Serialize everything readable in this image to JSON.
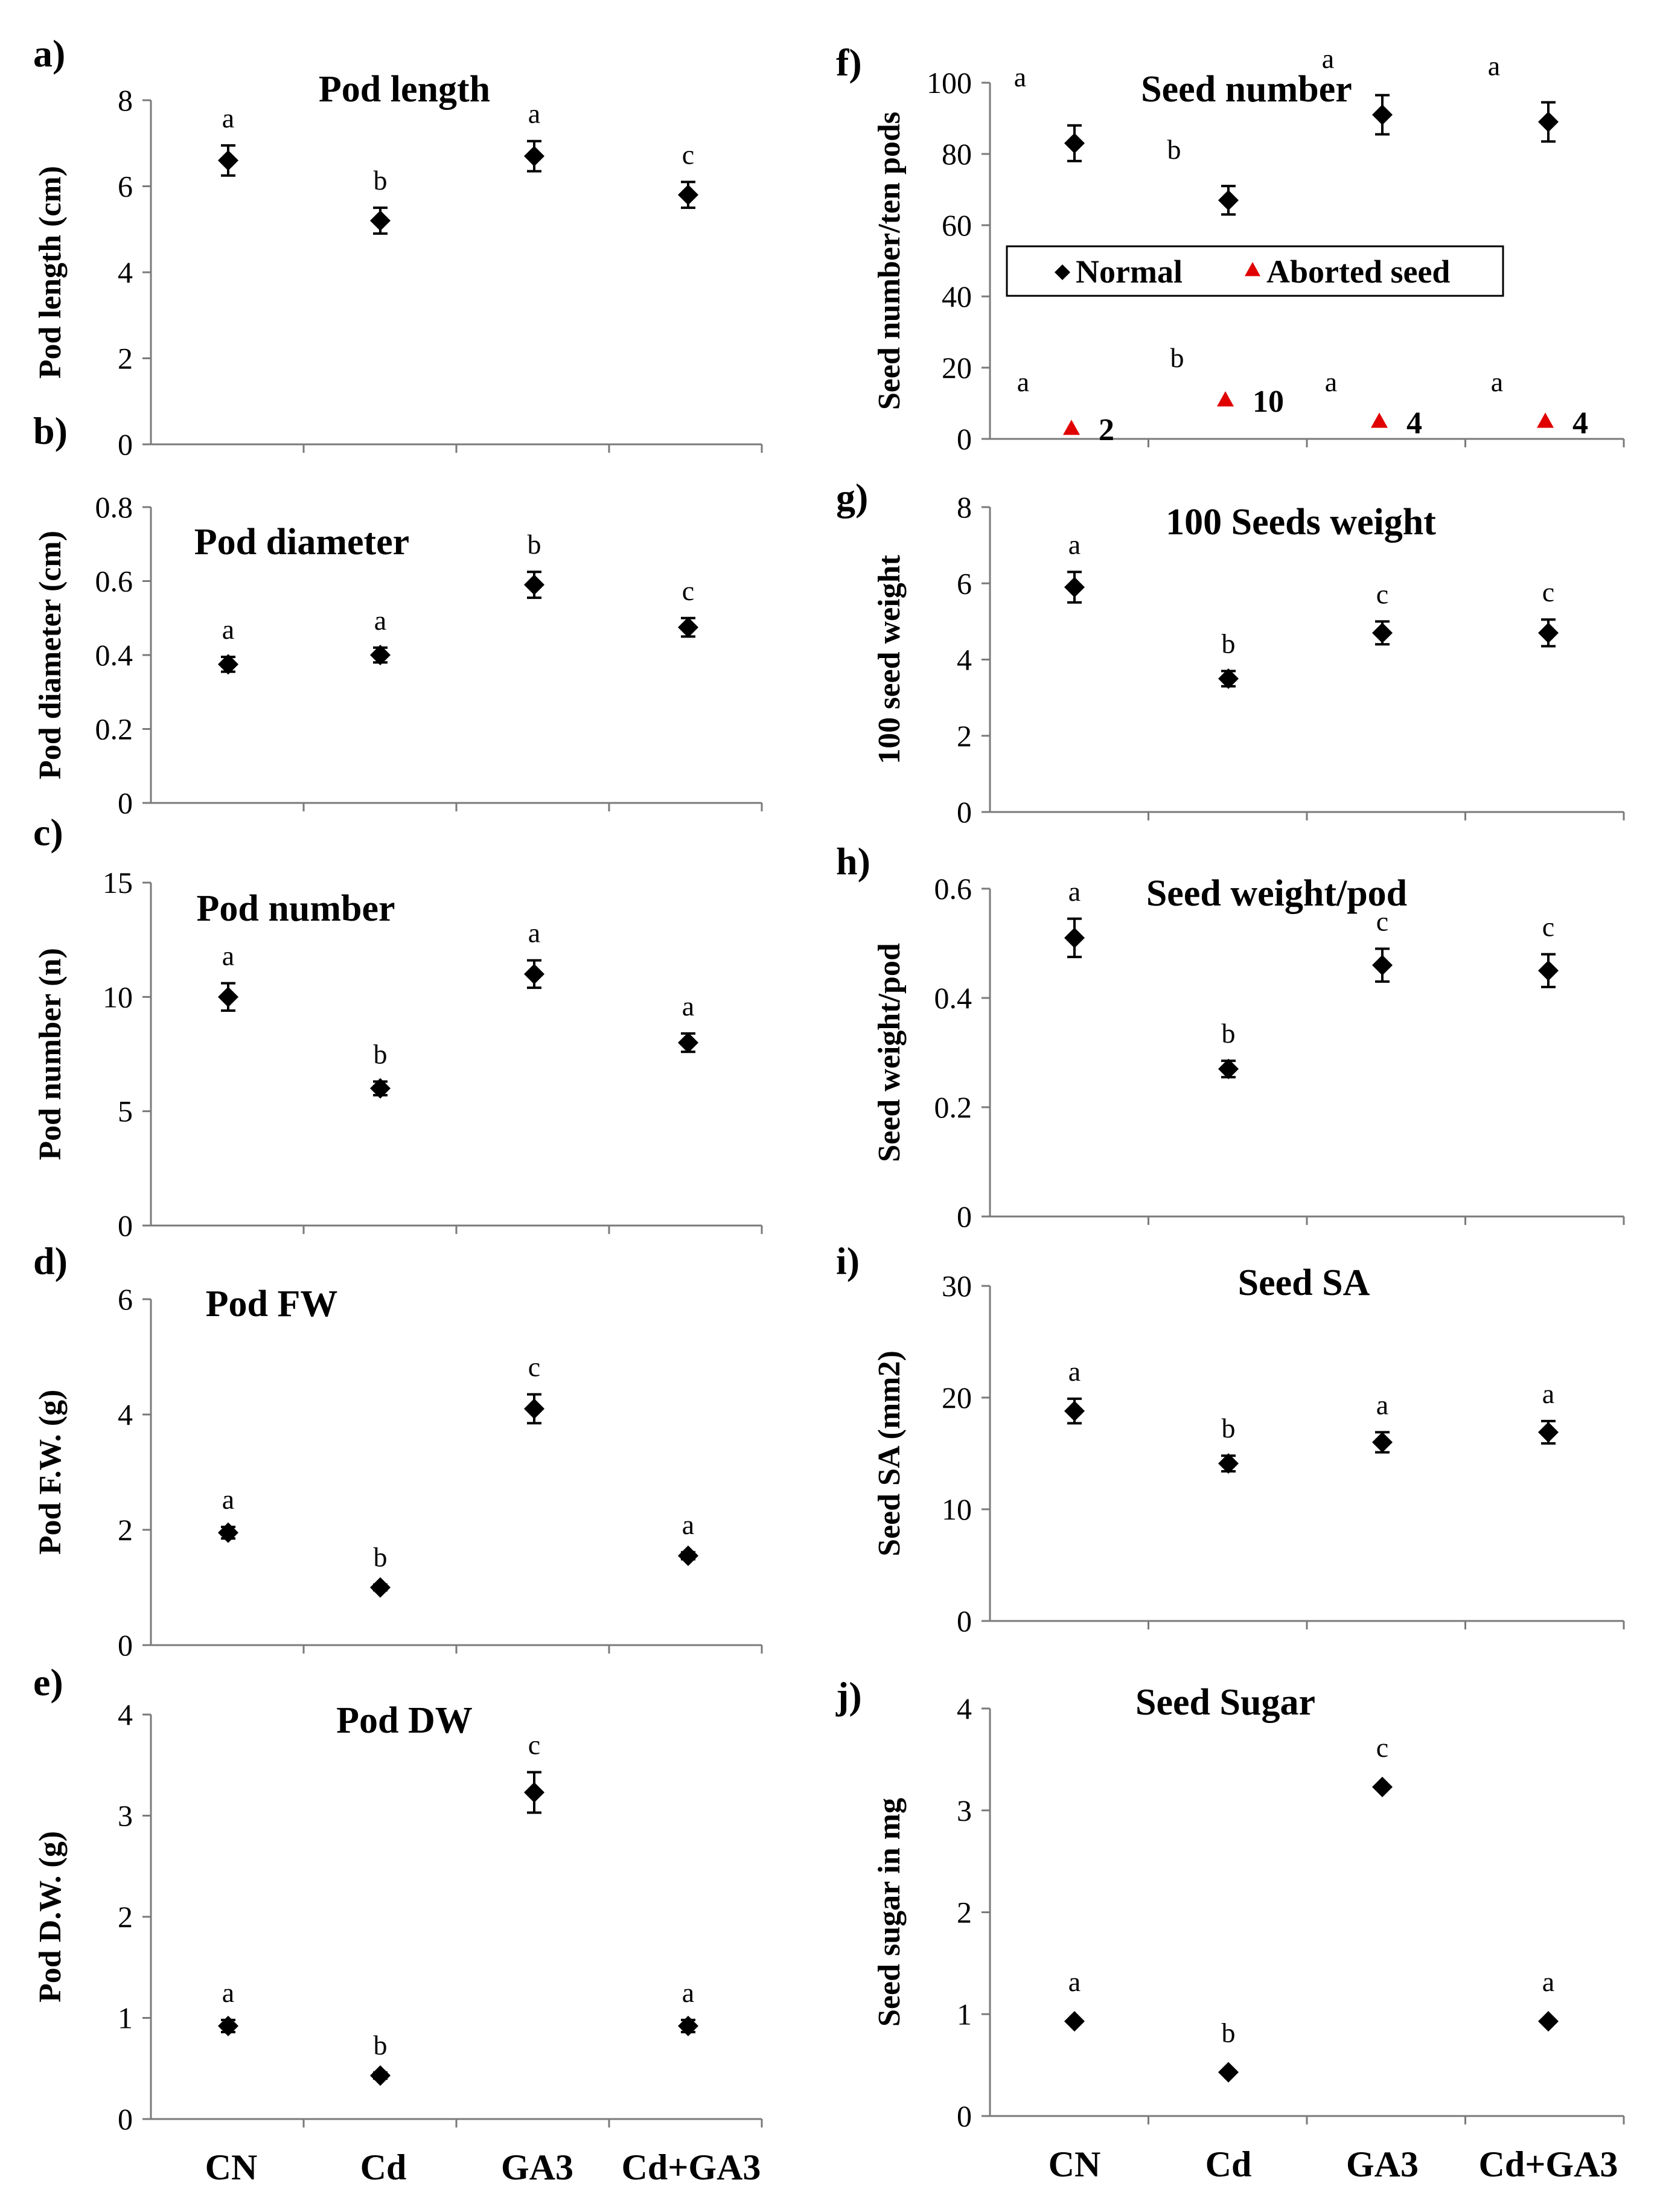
{
  "chart_data": [
    {
      "panel": "a)",
      "type": "scatter",
      "title": "Pod length",
      "ylabel": "Pod length (cm)",
      "ylim": [
        0,
        8
      ],
      "yticks": [
        0,
        2,
        4,
        6,
        8
      ],
      "categories": [
        "CN",
        "Cd",
        "GA3",
        "Cd+GA3"
      ],
      "series": [
        {
          "name": "Normal",
          "values": [
            6.6,
            5.2,
            6.7,
            5.8
          ],
          "errors": [
            0.35,
            0.3,
            0.35,
            0.3
          ],
          "letters": [
            "a",
            "b",
            "a",
            "c"
          ]
        }
      ]
    },
    {
      "panel": "b)",
      "type": "scatter",
      "title": "Pod diameter",
      "ylabel": "Pod diameter (cm)",
      "ylim": [
        0,
        0.8
      ],
      "yticks": [
        0,
        0.2,
        0.4,
        0.6,
        0.8
      ],
      "categories": [
        "CN",
        "Cd",
        "GA3",
        "Cd+GA3"
      ],
      "series": [
        {
          "name": "Normal",
          "values": [
            0.375,
            0.4,
            0.59,
            0.475
          ],
          "errors": [
            0.02,
            0.02,
            0.035,
            0.025
          ],
          "letters": [
            "a",
            "a",
            "b",
            "c"
          ]
        }
      ]
    },
    {
      "panel": "c)",
      "type": "scatter",
      "title": "Pod number",
      "ylabel": "Pod number (n)",
      "ylim": [
        0,
        15
      ],
      "yticks": [
        0,
        5,
        10,
        15
      ],
      "categories": [
        "CN",
        "Cd",
        "GA3",
        "Cd+GA3"
      ],
      "series": [
        {
          "name": "Normal",
          "values": [
            10,
            6,
            11,
            8
          ],
          "errors": [
            0.6,
            0.3,
            0.6,
            0.4
          ],
          "letters": [
            "a",
            "b",
            "a",
            "a"
          ]
        }
      ]
    },
    {
      "panel": "d)",
      "type": "scatter",
      "title": "Pod FW",
      "ylabel": "Pod F.W. (g)",
      "ylim": [
        0,
        6
      ],
      "yticks": [
        0,
        2,
        4,
        6
      ],
      "categories": [
        "CN",
        "Cd",
        "GA3",
        "Cd+GA3"
      ],
      "series": [
        {
          "name": "Normal",
          "values": [
            1.95,
            1.0,
            4.1,
            1.55
          ],
          "errors": [
            0.1,
            0.05,
            0.25,
            0.06
          ],
          "letters": [
            "a",
            "b",
            "c",
            "a"
          ]
        }
      ]
    },
    {
      "panel": "e)",
      "type": "scatter",
      "title": "Pod DW",
      "ylabel": "Pod D.W. (g)",
      "ylim": [
        0,
        4
      ],
      "yticks": [
        0,
        1,
        2,
        3,
        4
      ],
      "categories": [
        "CN",
        "Cd",
        "GA3",
        "Cd+GA3"
      ],
      "series": [
        {
          "name": "Normal",
          "values": [
            0.92,
            0.43,
            3.23,
            0.92
          ],
          "errors": [
            0.06,
            0.03,
            0.2,
            0.06
          ],
          "letters": [
            "a",
            "b",
            "c",
            "a"
          ]
        }
      ]
    },
    {
      "panel": "f)",
      "type": "scatter",
      "title": "Seed number",
      "ylabel": "Seed number/ten pods",
      "ylim": [
        0,
        100
      ],
      "yticks": [
        0,
        20,
        40,
        60,
        80,
        100
      ],
      "categories": [
        "CN",
        "Cd",
        "GA3",
        "Cd+GA3"
      ],
      "series": [
        {
          "name": "Normal",
          "values": [
            83,
            67,
            91,
            89
          ],
          "errors": [
            5,
            4,
            5.5,
            5.5
          ],
          "letters": [
            "a",
            "b",
            "a",
            "a"
          ]
        },
        {
          "name": "Aborted seed",
          "values": [
            2,
            10,
            4,
            4
          ],
          "labels": [
            "2",
            "10",
            "4",
            "4"
          ],
          "letters": [
            "a",
            "b",
            "a",
            "a"
          ],
          "color": "#e00000"
        }
      ],
      "legend": [
        "Normal",
        "Aborted seed"
      ]
    },
    {
      "panel": "g)",
      "type": "scatter",
      "title": "100 Seeds weight",
      "ylabel": "100 seed weight",
      "ylim": [
        0,
        8
      ],
      "yticks": [
        0,
        2,
        4,
        6,
        8
      ],
      "categories": [
        "CN",
        "Cd",
        "GA3",
        "Cd+GA3"
      ],
      "series": [
        {
          "name": "Normal",
          "values": [
            5.9,
            3.5,
            4.7,
            4.7
          ],
          "errors": [
            0.4,
            0.2,
            0.3,
            0.35
          ],
          "letters": [
            "a",
            "b",
            "c",
            "c"
          ]
        }
      ]
    },
    {
      "panel": "h)",
      "type": "scatter",
      "title": "Seed weight/pod",
      "ylabel": "Seed weight/pod",
      "ylim": [
        0,
        0.6
      ],
      "yticks": [
        0,
        0.2,
        0.4,
        0.6
      ],
      "categories": [
        "CN",
        "Cd",
        "GA3",
        "Cd+GA3"
      ],
      "series": [
        {
          "name": "Normal",
          "values": [
            0.51,
            0.27,
            0.46,
            0.45
          ],
          "errors": [
            0.035,
            0.015,
            0.03,
            0.03
          ],
          "letters": [
            "a",
            "b",
            "c",
            "c"
          ]
        }
      ]
    },
    {
      "panel": "i)",
      "type": "scatter",
      "title": "Seed SA",
      "ylabel": "Seed SA (mm2)",
      "ylim": [
        0,
        30
      ],
      "yticks": [
        0,
        10,
        20,
        30
      ],
      "categories": [
        "CN",
        "Cd",
        "GA3",
        "Cd+GA3"
      ],
      "series": [
        {
          "name": "Normal",
          "values": [
            18.8,
            14.1,
            16.0,
            16.9
          ],
          "errors": [
            1.1,
            0.7,
            0.9,
            1.0
          ],
          "letters": [
            "a",
            "b",
            "a",
            "a"
          ]
        }
      ]
    },
    {
      "panel": "j)",
      "type": "scatter",
      "title": "Seed Sugar",
      "ylabel": "Seed sugar in mg",
      "ylim": [
        0,
        4
      ],
      "yticks": [
        0,
        1,
        2,
        3,
        4
      ],
      "categories": [
        "CN",
        "Cd",
        "GA3",
        "Cd+GA3"
      ],
      "series": [
        {
          "name": "Normal",
          "values": [
            0.93,
            0.43,
            3.23,
            0.93
          ],
          "errors": [
            0,
            0,
            0,
            0
          ],
          "letters": [
            "a",
            "b",
            "c",
            "a"
          ]
        }
      ]
    }
  ]
}
